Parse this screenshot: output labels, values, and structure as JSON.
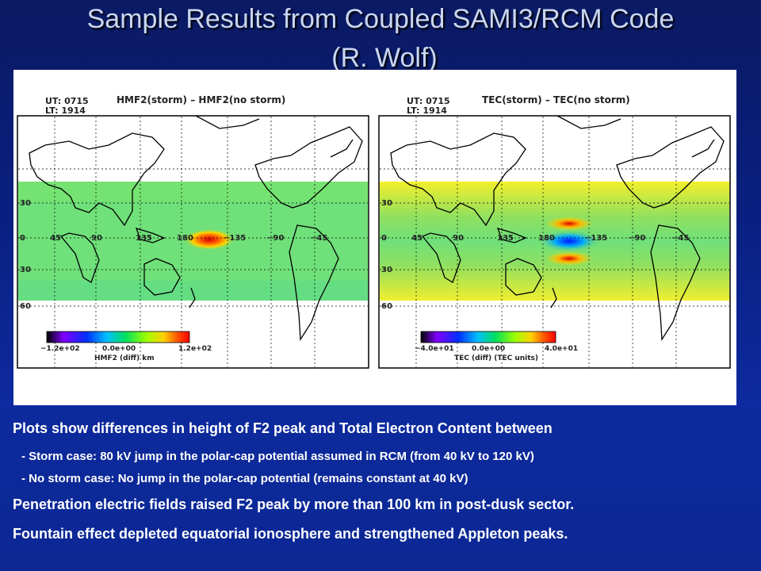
{
  "slide": {
    "title_line1": "Sample Results from Coupled SAMI3/RCM Code",
    "title_line2": "(R. Wolf)"
  },
  "figure": {
    "left_map": {
      "ut": "UT: 0715",
      "lt": "LT: 1914",
      "title": "HMF2(storm) – HMF2(no storm)",
      "colorbar_min": "−1.2e+02",
      "colorbar_mid": "0.0e+00",
      "colorbar_max": "1.2e+02",
      "colorbar_label": "HMF2 (diff) km"
    },
    "right_map": {
      "ut": "UT: 0715",
      "lt": "LT: 1914",
      "title": "TEC(storm) – TEC(no storm)",
      "colorbar_min": "−4.0e+01",
      "colorbar_mid": "0.0e+00",
      "colorbar_max": "4.0e+01",
      "colorbar_label": "TEC (diff) (TEC units)"
    },
    "lon_labels": [
      "45",
      "90",
      "135",
      "180",
      "−135",
      "−90",
      "−45"
    ],
    "lat_labels": [
      "30",
      "0",
      "30",
      "60"
    ]
  },
  "text": {
    "line1": "Plots show differences in height of F2 peak and Total Electron Content between",
    "line2": "- Storm case: 80 kV jump in the polar-cap potential assumed in RCM (from 40 kV to 120 kV)",
    "line3": "- No storm case:  No jump in the polar-cap potential (remains constant at 40 kV)",
    "line4": "Penetration electric fields raised F2 peak by more than 100 km in post-dusk sector.",
    "line5": "Fountain effect depleted equatorial ionosphere and strengthened Appleton peaks."
  }
}
